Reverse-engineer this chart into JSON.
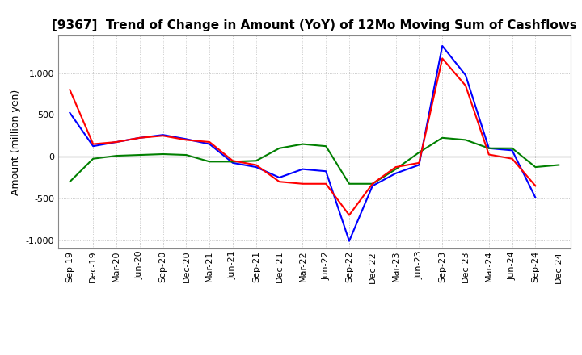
{
  "title": "[9367]  Trend of Change in Amount (YoY) of 12Mo Moving Sum of Cashflows",
  "ylabel": "Amount (million yen)",
  "x_labels": [
    "Sep-19",
    "Dec-19",
    "Mar-20",
    "Jun-20",
    "Sep-20",
    "Dec-20",
    "Mar-21",
    "Jun-21",
    "Sep-21",
    "Dec-21",
    "Mar-22",
    "Jun-22",
    "Sep-22",
    "Dec-22",
    "Mar-23",
    "Jun-23",
    "Sep-23",
    "Dec-23",
    "Mar-24",
    "Jun-24",
    "Sep-24",
    "Dec-24"
  ],
  "operating": [
    800,
    150,
    175,
    225,
    250,
    200,
    175,
    -50,
    -100,
    -300,
    -325,
    -325,
    -700,
    -325,
    -125,
    -75,
    1175,
    850,
    25,
    -25,
    -350,
    null
  ],
  "investing": [
    -300,
    -25,
    10,
    20,
    30,
    20,
    -60,
    -60,
    -50,
    100,
    150,
    125,
    -325,
    -325,
    -150,
    50,
    225,
    200,
    100,
    100,
    -125,
    -100
  ],
  "free": [
    525,
    125,
    175,
    225,
    260,
    210,
    150,
    -75,
    -125,
    -250,
    -150,
    -175,
    -1010,
    -350,
    -200,
    -100,
    1325,
    975,
    100,
    75,
    -490,
    null
  ],
  "operating_color": "#ff0000",
  "investing_color": "#008000",
  "free_color": "#0000ff",
  "ylim": [
    -1100,
    1450
  ],
  "yticks": [
    -1000,
    -500,
    0,
    500,
    1000
  ],
  "background_color": "#ffffff",
  "grid_color": "#aaaaaa",
  "title_fontsize": 11,
  "axis_fontsize": 9,
  "tick_fontsize": 8,
  "legend_fontsize": 9
}
